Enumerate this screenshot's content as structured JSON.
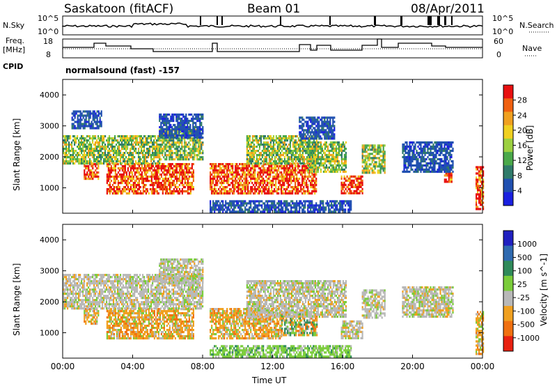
{
  "header": {
    "station": "Saskatoon (fitACF)",
    "beam": "Beam 01",
    "date": "08/Apr/2011"
  },
  "status_panel": {
    "nsky_label": "N.Sky",
    "nsky_ticks": [
      "10^5",
      "10^0"
    ],
    "nsearch_label": "N.Search",
    "nsearch_ticks": [
      "10^5",
      "10^0"
    ],
    "freq_label": [
      "Freq.",
      "[MHz]"
    ],
    "freq_ticks": [
      "18",
      "8"
    ],
    "nave_label": "Nave",
    "nave_ticks": [
      "60",
      "0"
    ],
    "cpid_label": "CPID",
    "cpid_text": "normalsound (fast) -157"
  },
  "chart_data": [
    {
      "type": "heatmap",
      "panel": "power",
      "ylabel": "Slant Range [km]",
      "ylim": [
        180,
        4500
      ],
      "yticks": [
        "1000",
        "2000",
        "3000",
        "4000"
      ],
      "xlim": [
        0,
        24
      ],
      "colorbar_label": "Power [dB]",
      "colorbar_ticks": [
        "4",
        "8",
        "12",
        "16",
        "20",
        "24",
        "28"
      ],
      "colors": [
        "#1a20e0",
        "#2050b0",
        "#2f7a6a",
        "#4aa84a",
        "#9cd040",
        "#f0d020",
        "#f0a020",
        "#f06010",
        "#e81010"
      ],
      "regions": [
        {
          "t": [
            1.2,
            2.0
          ],
          "r": [
            1300,
            1800
          ],
          "level": "high"
        },
        {
          "t": [
            2.5,
            7.5
          ],
          "r": [
            800,
            1800
          ],
          "level": "high"
        },
        {
          "t": [
            8.4,
            14.5
          ],
          "r": [
            800,
            1800
          ],
          "level": "high"
        },
        {
          "t": [
            15.9,
            17.1
          ],
          "r": [
            800,
            1400
          ],
          "level": "high"
        },
        {
          "t": [
            21.8,
            22.2
          ],
          "r": [
            1200,
            1500
          ],
          "level": "high"
        },
        {
          "t": [
            23.6,
            24.0
          ],
          "r": [
            300,
            1700
          ],
          "level": "high"
        },
        {
          "t": [
            0.0,
            5.5
          ],
          "r": [
            1800,
            2700
          ],
          "level": "mid"
        },
        {
          "t": [
            5.5,
            8.0
          ],
          "r": [
            1900,
            2900
          ],
          "level": "mid"
        },
        {
          "t": [
            10.5,
            14.5
          ],
          "r": [
            1800,
            2700
          ],
          "level": "mid"
        },
        {
          "t": [
            14.0,
            16.2
          ],
          "r": [
            1500,
            2500
          ],
          "level": "mid"
        },
        {
          "t": [
            17.1,
            18.4
          ],
          "r": [
            1500,
            2400
          ],
          "level": "mid"
        },
        {
          "t": [
            19.4,
            22.3
          ],
          "r": [
            1500,
            2500
          ],
          "level": "low"
        },
        {
          "t": [
            5.5,
            8.0
          ],
          "r": [
            2600,
            3400
          ],
          "level": "low"
        },
        {
          "t": [
            0.5,
            2.2
          ],
          "r": [
            2900,
            3500
          ],
          "level": "low"
        },
        {
          "t": [
            8.4,
            16.5
          ],
          "r": [
            250,
            600
          ],
          "level": "low"
        },
        {
          "t": [
            13.5,
            15.5
          ],
          "r": [
            2600,
            3300
          ],
          "level": "low"
        }
      ]
    },
    {
      "type": "heatmap",
      "panel": "velocity",
      "ylabel": "Slant Range [km]",
      "ylim": [
        180,
        4500
      ],
      "yticks": [
        "1000",
        "2000",
        "3000",
        "4000"
      ],
      "xlim": [
        0,
        24
      ],
      "xticks": [
        "00:00",
        "04:00",
        "08:00",
        "12:00",
        "16:00",
        "20:00",
        "00:00"
      ],
      "xlabel": "Time UT",
      "colorbar_label": "Velocity [m s^-1]",
      "colorbar_ticks": [
        "1000",
        "500",
        "100",
        "25",
        "-25",
        "-100",
        "-500",
        "-1000"
      ],
      "colors": [
        "#2020c0",
        "#2f6ab0",
        "#2f8a5a",
        "#7acc3a",
        "#b8b8b8",
        "#f0a020",
        "#f07010",
        "#e82010"
      ],
      "regions": [
        {
          "t": [
            1.2,
            2.0
          ],
          "r": [
            1300,
            1800
          ],
          "level": "neg"
        },
        {
          "t": [
            2.5,
            7.5
          ],
          "r": [
            800,
            1800
          ],
          "level": "neg"
        },
        {
          "t": [
            8.4,
            12.5
          ],
          "r": [
            800,
            1800
          ],
          "level": "neg"
        },
        {
          "t": [
            12.5,
            14.5
          ],
          "r": [
            900,
            1700
          ],
          "level": "mixed"
        },
        {
          "t": [
            15.9,
            17.1
          ],
          "r": [
            800,
            1400
          ],
          "level": "zero"
        },
        {
          "t": [
            23.6,
            24.0
          ],
          "r": [
            300,
            1700
          ],
          "level": "neg"
        },
        {
          "t": [
            0.0,
            8.0
          ],
          "r": [
            1800,
            2900
          ],
          "level": "zero"
        },
        {
          "t": [
            5.5,
            8.0
          ],
          "r": [
            2600,
            3400
          ],
          "level": "zero"
        },
        {
          "t": [
            10.5,
            16.2
          ],
          "r": [
            1500,
            2700
          ],
          "level": "zero"
        },
        {
          "t": [
            17.1,
            18.4
          ],
          "r": [
            1500,
            2400
          ],
          "level": "zero"
        },
        {
          "t": [
            19.4,
            22.3
          ],
          "r": [
            1500,
            2500
          ],
          "level": "zero"
        },
        {
          "t": [
            8.4,
            16.5
          ],
          "r": [
            250,
            600
          ],
          "level": "pos"
        }
      ]
    }
  ]
}
